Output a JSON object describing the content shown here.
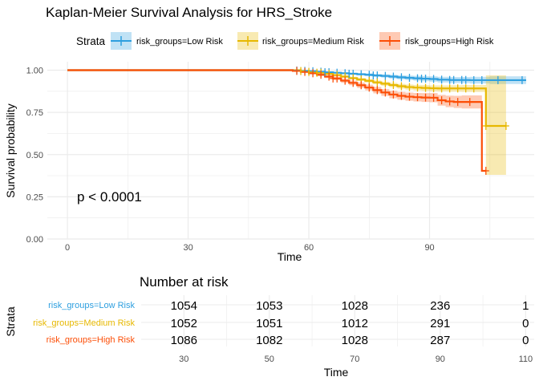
{
  "colors": {
    "low": "#2E9FDF",
    "medium": "#E7B800",
    "high": "#FC4E07",
    "grid": "#ebebeb",
    "axis_text": "#4d4d4d"
  },
  "legend": {
    "title": "Strata",
    "entries": [
      "risk_groups=Low Risk",
      "risk_groups=Medium Risk",
      "risk_groups=High Risk"
    ]
  },
  "annotation": {
    "pvalue": "p < 0.0001"
  },
  "chart_data": [
    {
      "type": "line",
      "subtype": "kaplan-meier step",
      "title": "Kaplan-Meier Survival Analysis for HRS_Stroke",
      "xlabel": "Time",
      "ylabel": "Survival probability",
      "xlim": [
        -5,
        116
      ],
      "ylim": [
        0,
        1.05
      ],
      "xticks": [
        0,
        30,
        60,
        90
      ],
      "yticks": [
        0,
        0.25,
        0.5,
        0.75,
        1.0
      ],
      "ytick_labels": [
        "0.00",
        "0.25",
        "0.50",
        "0.75",
        "1.00"
      ],
      "grid": true,
      "legend_position": "top",
      "series": [
        {
          "name": "risk_groups=Low Risk",
          "color": "#2E9FDF",
          "x": [
            0,
            56,
            58,
            60,
            62,
            64,
            66,
            68,
            70,
            72,
            74,
            76,
            78,
            80,
            82,
            84,
            86,
            88,
            90,
            92,
            95,
            100,
            105,
            110,
            114
          ],
          "y": [
            1.0,
            0.998,
            0.996,
            0.994,
            0.991,
            0.988,
            0.985,
            0.982,
            0.979,
            0.976,
            0.973,
            0.969,
            0.966,
            0.962,
            0.958,
            0.955,
            0.952,
            0.95,
            0.948,
            0.944,
            0.942,
            0.941,
            0.941,
            0.941,
            0.941
          ],
          "ci_lower": [
            1.0,
            0.997,
            0.995,
            0.992,
            0.989,
            0.985,
            0.981,
            0.977,
            0.973,
            0.969,
            0.965,
            0.96,
            0.956,
            0.951,
            0.946,
            0.942,
            0.938,
            0.935,
            0.932,
            0.927,
            0.924,
            0.921,
            0.918,
            0.918,
            0.918
          ],
          "ci_upper": [
            1.0,
            0.999,
            0.998,
            0.996,
            0.994,
            0.991,
            0.989,
            0.987,
            0.985,
            0.983,
            0.981,
            0.978,
            0.976,
            0.973,
            0.97,
            0.968,
            0.966,
            0.965,
            0.964,
            0.961,
            0.96,
            0.961,
            0.964,
            0.964,
            0.964
          ],
          "censor_x": [
            57,
            59,
            61,
            63,
            64,
            65,
            67,
            69,
            70,
            71,
            73,
            75,
            76,
            77,
            79,
            81,
            83,
            85,
            87,
            88,
            89,
            91,
            93,
            95,
            96,
            98,
            99,
            101,
            103,
            107,
            113
          ]
        },
        {
          "name": "risk_groups=Medium Risk",
          "color": "#E7B800",
          "x": [
            0,
            58,
            60,
            62,
            64,
            66,
            68,
            70,
            72,
            74,
            76,
            78,
            80,
            82,
            84,
            86,
            88,
            90,
            92,
            95,
            98,
            100,
            103,
            104,
            109
          ],
          "y": [
            1.0,
            0.995,
            0.99,
            0.985,
            0.978,
            0.971,
            0.962,
            0.953,
            0.945,
            0.937,
            0.928,
            0.92,
            0.912,
            0.905,
            0.9,
            0.897,
            0.895,
            0.893,
            0.892,
            0.892,
            0.892,
            0.892,
            0.892,
            0.67,
            0.67
          ],
          "ci_lower": [
            1.0,
            0.993,
            0.987,
            0.981,
            0.973,
            0.965,
            0.955,
            0.945,
            0.936,
            0.927,
            0.917,
            0.908,
            0.899,
            0.891,
            0.885,
            0.881,
            0.878,
            0.876,
            0.874,
            0.873,
            0.872,
            0.872,
            0.872,
            0.38,
            0.38
          ],
          "ci_upper": [
            1.0,
            0.997,
            0.993,
            0.989,
            0.983,
            0.977,
            0.969,
            0.961,
            0.954,
            0.947,
            0.939,
            0.932,
            0.925,
            0.919,
            0.915,
            0.913,
            0.912,
            0.91,
            0.91,
            0.911,
            0.912,
            0.912,
            0.912,
            0.97,
            0.97
          ],
          "censor_x": [
            58,
            60,
            62,
            63,
            65,
            67,
            69,
            71,
            73,
            75,
            77,
            79,
            81,
            83,
            85,
            87,
            89,
            91,
            93,
            95,
            97,
            99,
            101,
            104,
            109
          ]
        },
        {
          "name": "risk_groups=High Risk",
          "color": "#FC4E07",
          "x": [
            0,
            56,
            58,
            60,
            62,
            64,
            66,
            68,
            70,
            72,
            74,
            76,
            78,
            80,
            82,
            84,
            86,
            88,
            90,
            92,
            94,
            96,
            98,
            101,
            103,
            104
          ],
          "y": [
            1.0,
            0.996,
            0.99,
            0.982,
            0.973,
            0.962,
            0.951,
            0.938,
            0.925,
            0.911,
            0.897,
            0.882,
            0.868,
            0.856,
            0.848,
            0.843,
            0.84,
            0.838,
            0.837,
            0.822,
            0.815,
            0.812,
            0.812,
            0.812,
            0.404,
            0.404
          ],
          "ci_lower": [
            1.0,
            0.993,
            0.986,
            0.976,
            0.965,
            0.953,
            0.94,
            0.925,
            0.911,
            0.895,
            0.88,
            0.863,
            0.848,
            0.834,
            0.825,
            0.819,
            0.815,
            0.812,
            0.81,
            0.79,
            0.781,
            0.776,
            0.773,
            0.773,
            0.404,
            0.404
          ],
          "ci_upper": [
            1.0,
            0.998,
            0.994,
            0.988,
            0.981,
            0.971,
            0.962,
            0.951,
            0.939,
            0.927,
            0.914,
            0.901,
            0.888,
            0.878,
            0.871,
            0.867,
            0.865,
            0.864,
            0.864,
            0.854,
            0.849,
            0.848,
            0.851,
            0.851,
            0.404,
            0.404
          ],
          "censor_x": [
            57,
            59,
            61,
            63,
            65,
            66,
            67,
            69,
            71,
            73,
            75,
            77,
            79,
            81,
            83,
            85,
            87,
            89,
            91,
            93,
            95,
            97,
            100,
            104
          ]
        }
      ]
    },
    {
      "type": "table",
      "title": "Number at risk",
      "xlabel": "Time",
      "ylabel": "Strata",
      "xlim": [
        20,
        112
      ],
      "time_points": [
        30,
        50,
        70,
        90,
        110
      ],
      "rows": [
        {
          "label": "risk_groups=Low Risk",
          "color": "#2E9FDF",
          "values": [
            "1054",
            "1053",
            "1028",
            "236",
            "1"
          ]
        },
        {
          "label": "risk_groups=Medium Risk",
          "color": "#E7B800",
          "values": [
            "1052",
            "1051",
            "1012",
            "291",
            "0"
          ]
        },
        {
          "label": "risk_groups=High Risk",
          "color": "#FC4E07",
          "values": [
            "1086",
            "1082",
            "1028",
            "287",
            "0"
          ]
        }
      ]
    }
  ]
}
